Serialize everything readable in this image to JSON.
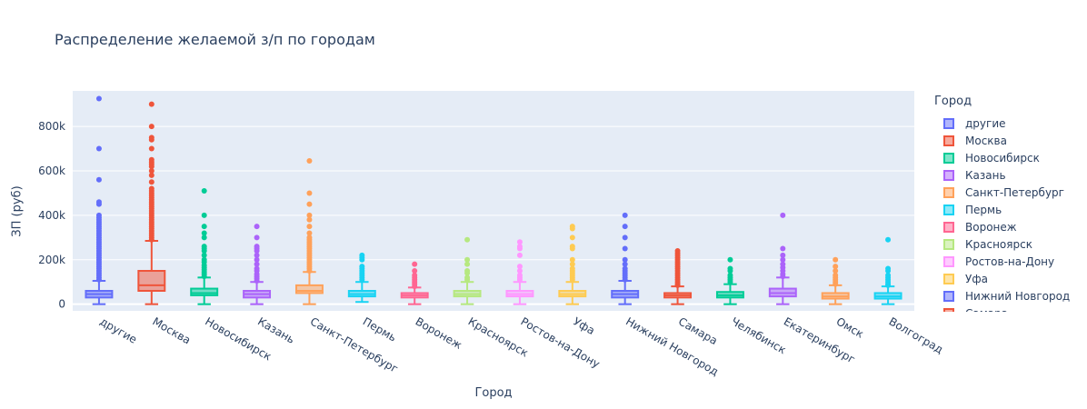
{
  "chart_data": {
    "type": "box",
    "title": "Распределение желаемой з/п по городам",
    "xlabel": "Город",
    "ylabel": "ЗП (руб)",
    "ylim": [
      -30000,
      960000
    ],
    "y_ticks": [
      0,
      200000,
      400000,
      600000,
      800000
    ],
    "y_tick_labels": [
      "0",
      "200k",
      "400k",
      "600k",
      "800k"
    ],
    "legend_title": "Город",
    "grid": true,
    "legend_position": "right",
    "categories": [
      "другие",
      "Москва",
      "Новосибирск",
      "Казань",
      "Санкт-Петербург",
      "Пермь",
      "Воронеж",
      "Красноярск",
      "Ростов-на-Дону",
      "Уфа",
      "Нижний Новгород",
      "Самара",
      "Челябинск",
      "Екатеринбург",
      "Омск",
      "Волгоград"
    ],
    "series": [
      {
        "name": "другие",
        "color": "#636efa",
        "min": 0,
        "q1": 30000,
        "median": 45000,
        "q3": 60000,
        "max": 105000,
        "outliers": [
          110000,
          120000,
          130000,
          140000,
          150000,
          160000,
          170000,
          180000,
          190000,
          200000,
          210000,
          220000,
          230000,
          240000,
          250000,
          260000,
          270000,
          280000,
          290000,
          300000,
          310000,
          320000,
          330000,
          340000,
          350000,
          360000,
          370000,
          380000,
          390000,
          400000,
          450000,
          460000,
          560000,
          700000,
          925000
        ]
      },
      {
        "name": "Москва",
        "color": "#ef553b",
        "min": 0,
        "q1": 60000,
        "median": 85000,
        "q3": 150000,
        "max": 285000,
        "outliers": [
          290000,
          300000,
          310000,
          320000,
          330000,
          340000,
          350000,
          360000,
          370000,
          380000,
          390000,
          400000,
          410000,
          420000,
          430000,
          440000,
          450000,
          460000,
          470000,
          480000,
          490000,
          500000,
          510000,
          520000,
          550000,
          580000,
          600000,
          620000,
          630000,
          640000,
          650000,
          700000,
          740000,
          750000,
          800000,
          900000
        ]
      },
      {
        "name": "Новосибирск",
        "color": "#00cc96",
        "min": 0,
        "q1": 40000,
        "median": 50000,
        "q3": 70000,
        "max": 120000,
        "outliers": [
          125000,
          135000,
          145000,
          155000,
          165000,
          175000,
          190000,
          200000,
          220000,
          240000,
          250000,
          260000,
          300000,
          320000,
          350000,
          400000,
          510000
        ]
      },
      {
        "name": "Казань",
        "color": "#ab63fa",
        "min": 0,
        "q1": 30000,
        "median": 45000,
        "q3": 60000,
        "max": 100000,
        "outliers": [
          105000,
          115000,
          125000,
          135000,
          150000,
          160000,
          180000,
          200000,
          220000,
          240000,
          250000,
          260000,
          300000,
          350000
        ]
      },
      {
        "name": "Санкт-Петербург",
        "color": "#ffa15a",
        "min": 0,
        "q1": 50000,
        "median": 60000,
        "q3": 85000,
        "max": 145000,
        "outliers": [
          150000,
          160000,
          170000,
          180000,
          190000,
          200000,
          210000,
          220000,
          230000,
          240000,
          250000,
          260000,
          270000,
          280000,
          290000,
          300000,
          320000,
          350000,
          380000,
          400000,
          450000,
          500000,
          645000
        ]
      },
      {
        "name": "Пермь",
        "color": "#19d3f3",
        "min": 10000,
        "q1": 35000,
        "median": 45000,
        "q3": 60000,
        "max": 100000,
        "outliers": [
          110000,
          120000,
          130000,
          140000,
          150000,
          160000,
          170000,
          200000,
          210000,
          220000
        ]
      },
      {
        "name": "Воронеж",
        "color": "#ff6692",
        "min": 0,
        "q1": 30000,
        "median": 40000,
        "q3": 50000,
        "max": 75000,
        "outliers": [
          80000,
          90000,
          100000,
          110000,
          120000,
          130000,
          150000,
          180000
        ]
      },
      {
        "name": "Красноярск",
        "color": "#b6e880",
        "min": 0,
        "q1": 35000,
        "median": 45000,
        "q3": 60000,
        "max": 100000,
        "outliers": [
          110000,
          120000,
          140000,
          150000,
          180000,
          200000,
          290000
        ]
      },
      {
        "name": "Ростов-на-Дону",
        "color": "#ff97ff",
        "min": 0,
        "q1": 35000,
        "median": 45000,
        "q3": 60000,
        "max": 100000,
        "outliers": [
          110000,
          120000,
          130000,
          150000,
          170000,
          220000,
          250000,
          260000,
          280000
        ]
      },
      {
        "name": "Уфа",
        "color": "#fecb52",
        "min": 0,
        "q1": 35000,
        "median": 45000,
        "q3": 60000,
        "max": 100000,
        "outliers": [
          110000,
          120000,
          130000,
          140000,
          150000,
          160000,
          180000,
          200000,
          250000,
          260000,
          300000,
          340000,
          350000
        ]
      },
      {
        "name": "Нижний Новгород",
        "color": "#636efa",
        "min": 0,
        "q1": 30000,
        "median": 45000,
        "q3": 60000,
        "max": 105000,
        "outliers": [
          110000,
          120000,
          130000,
          140000,
          150000,
          160000,
          180000,
          200000,
          250000,
          300000,
          350000,
          400000
        ]
      },
      {
        "name": "Самара",
        "color": "#ef553b",
        "min": 0,
        "q1": 30000,
        "median": 40000,
        "q3": 50000,
        "max": 80000,
        "outliers": [
          85000,
          90000,
          100000,
          110000,
          120000,
          130000,
          140000,
          150000,
          160000,
          170000,
          180000,
          190000,
          200000,
          210000,
          220000,
          230000,
          240000
        ]
      },
      {
        "name": "Челябинск",
        "color": "#00cc96",
        "min": 0,
        "q1": 30000,
        "median": 40000,
        "q3": 55000,
        "max": 90000,
        "outliers": [
          100000,
          110000,
          120000,
          130000,
          150000,
          160000,
          200000
        ]
      },
      {
        "name": "Екатеринбург",
        "color": "#ab63fa",
        "min": 0,
        "q1": 35000,
        "median": 50000,
        "q3": 70000,
        "max": 120000,
        "outliers": [
          125000,
          135000,
          150000,
          165000,
          180000,
          200000,
          220000,
          250000,
          400000
        ]
      },
      {
        "name": "Омск",
        "color": "#ffa15a",
        "min": 0,
        "q1": 25000,
        "median": 35000,
        "q3": 50000,
        "max": 85000,
        "outliers": [
          90000,
          100000,
          110000,
          120000,
          130000,
          150000,
          170000,
          200000
        ]
      },
      {
        "name": "Волгоград",
        "color": "#19d3f3",
        "min": 0,
        "q1": 25000,
        "median": 35000,
        "q3": 50000,
        "max": 80000,
        "outliers": [
          85000,
          90000,
          100000,
          110000,
          120000,
          130000,
          150000,
          160000,
          290000
        ]
      }
    ]
  }
}
